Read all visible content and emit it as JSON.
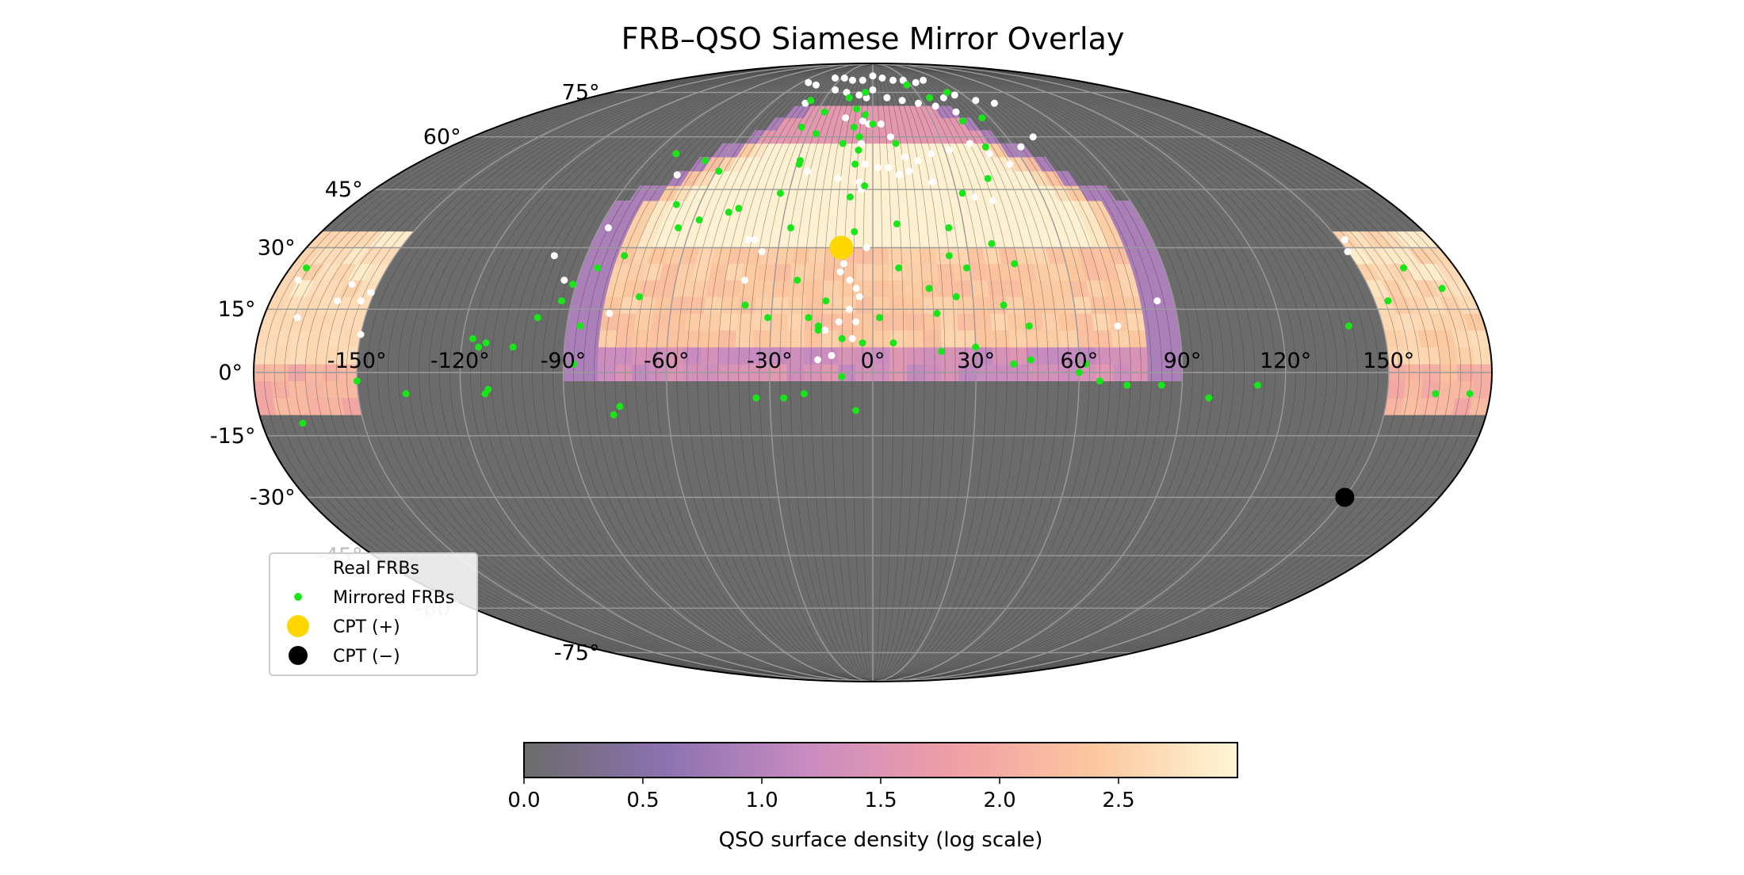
{
  "chart_data": {
    "type": "scatter",
    "projection": "mollweide",
    "title": "FRB–QSO Siamese Mirror Overlay",
    "lon_ticks": [
      -150,
      -120,
      -90,
      -60,
      -30,
      0,
      30,
      60,
      90,
      120,
      150
    ],
    "lon_tick_labels": [
      "-150°",
      "-120°",
      "-90°",
      "-60°",
      "-30°",
      "0°",
      "30°",
      "60°",
      "90°",
      "120°",
      "150°"
    ],
    "lat_ticks": [
      75,
      60,
      45,
      30,
      15,
      0,
      -15,
      -30,
      -45,
      -60,
      -75
    ],
    "lat_tick_labels": [
      "75°",
      "60°",
      "45°",
      "30°",
      "15°",
      "0°",
      "-15°",
      "-30°",
      "-45°",
      "-60°",
      "-75°"
    ],
    "grid": true,
    "background_color": "#6b6b6b",
    "heatmap": {
      "description": "QSO surface density (log scale) on sky grid",
      "colormap": [
        "#6b6b6b",
        "#8c72b0",
        "#c98cc0",
        "#f09ea6",
        "#fcc79e",
        "#fef5d6"
      ],
      "cmap_stops": [
        0.0,
        0.2,
        0.4,
        0.6,
        0.8,
        1.0
      ],
      "vmin": 0.0,
      "vmax": 3.0
    },
    "colorbar": {
      "label": "QSO surface density (log scale)",
      "ticks": [
        0.0,
        0.5,
        1.0,
        1.5,
        2.0,
        2.5
      ],
      "tick_labels": [
        "0.0",
        "0.5",
        "1.0",
        "1.5",
        "2.0",
        "2.5"
      ]
    },
    "legend": {
      "placement": "lower-left",
      "entries": [
        {
          "label": "Real FRBs",
          "color": "#ffffff",
          "marker": "small-dot"
        },
        {
          "label": "Mirrored FRBs",
          "color": "#19e619",
          "marker": "small-dot"
        },
        {
          "label": "CPT (+)",
          "color": "#ffd700",
          "marker": "large-dot"
        },
        {
          "label": "CPT (−)",
          "color": "#000000",
          "marker": "large-dot"
        }
      ]
    },
    "series": [
      {
        "name": "Real FRBs",
        "color": "#ffffff",
        "points": [
          [
            -36,
            81
          ],
          [
            -27,
            81
          ],
          [
            -18,
            80
          ],
          [
            -9,
            80
          ],
          [
            0,
            82
          ],
          [
            9,
            81
          ],
          [
            18,
            80
          ],
          [
            27,
            80
          ],
          [
            36,
            79
          ],
          [
            45,
            80
          ],
          [
            -45,
            78
          ],
          [
            -54,
            79
          ],
          [
            -27,
            76
          ],
          [
            -18,
            75
          ],
          [
            -9,
            74
          ],
          [
            -4,
            73
          ],
          [
            0,
            76
          ],
          [
            9,
            73
          ],
          [
            18,
            72
          ],
          [
            27,
            71
          ],
          [
            45,
            73
          ],
          [
            54,
            74
          ],
          [
            63,
            72
          ],
          [
            72,
            71
          ],
          [
            36,
            70
          ],
          [
            45,
            68
          ],
          [
            -40,
            71
          ],
          [
            -14,
            66
          ],
          [
            -5,
            65
          ],
          [
            -2,
            64
          ],
          [
            4,
            64
          ],
          [
            8,
            60
          ],
          [
            13,
            54
          ],
          [
            18,
            53
          ],
          [
            24,
            55
          ],
          [
            32,
            56
          ],
          [
            42,
            58
          ],
          [
            48,
            55
          ],
          [
            54,
            52
          ],
          [
            63,
            57
          ],
          [
            72,
            60
          ],
          [
            -5,
            58
          ],
          [
            -3,
            52
          ],
          [
            2,
            51
          ],
          [
            6,
            51
          ],
          [
            10,
            49
          ],
          [
            14,
            50
          ],
          [
            -25,
            50
          ],
          [
            -13,
            48
          ],
          [
            -5,
            47
          ],
          [
            -4,
            45
          ],
          [
            22,
            47
          ],
          [
            36,
            43
          ],
          [
            42,
            42
          ],
          [
            -40,
            32
          ],
          [
            -38,
            32
          ],
          [
            -35,
            29
          ],
          [
            -39,
            22
          ],
          [
            -2,
            30
          ],
          [
            -4,
            18
          ],
          [
            -7,
            15
          ],
          [
            -5,
            12
          ],
          [
            -10,
            12
          ],
          [
            -14,
            10
          ],
          [
            -6,
            8
          ],
          [
            -12,
            4
          ],
          [
            -16,
            3
          ],
          [
            -9,
            26
          ],
          [
            -10,
            24
          ],
          [
            -7,
            22
          ],
          [
            -5,
            20
          ],
          [
            -100,
            28
          ],
          [
            -94,
            22
          ],
          [
            -78,
            14
          ],
          [
            -150,
            9
          ],
          [
            -170,
            13
          ],
          [
            -160,
            17
          ],
          [
            -153,
            17
          ],
          [
            -151,
            19
          ],
          [
            -175,
            22
          ],
          [
            -158,
            21
          ],
          [
            150,
            29
          ],
          [
            152,
            32
          ],
          [
            85,
            17
          ],
          [
            72,
            11
          ],
          [
            -87,
            35
          ],
          [
            -74,
            49
          ]
        ]
      },
      {
        "name": "Mirrored FRBs",
        "color": "#19e619",
        "points": [
          [
            -5,
            75
          ],
          [
            -15,
            73
          ],
          [
            -9,
            69
          ],
          [
            -4,
            67
          ],
          [
            0,
            64
          ],
          [
            -9,
            63
          ],
          [
            -6,
            60
          ],
          [
            -6,
            56
          ],
          [
            -26,
            68
          ],
          [
            -13,
            58
          ],
          [
            -7,
            52
          ],
          [
            10,
            58
          ],
          [
            27,
            78
          ],
          [
            36,
            73
          ],
          [
            51,
            75
          ],
          [
            45,
            65
          ],
          [
            56,
            66
          ],
          [
            48,
            57
          ],
          [
            -38,
            72
          ],
          [
            -34,
            63
          ],
          [
            -26,
            61
          ],
          [
            -3,
            46
          ],
          [
            -8,
            43
          ],
          [
            -6,
            34
          ],
          [
            8,
            36
          ],
          [
            25,
            35
          ],
          [
            32,
            44
          ],
          [
            43,
            48
          ],
          [
            38,
            31
          ],
          [
            -29,
            53
          ],
          [
            -67,
            53
          ],
          [
            -59,
            50
          ],
          [
            -81,
            55
          ],
          [
            -29,
            52
          ],
          [
            -33,
            44
          ],
          [
            -27,
            35
          ],
          [
            -46,
            40
          ],
          [
            -64,
            35
          ],
          [
            -68,
            41
          ],
          [
            -78,
            28
          ],
          [
            -85,
            25
          ],
          [
            -91,
            21
          ],
          [
            -93,
            17
          ],
          [
            -86,
            11
          ],
          [
            -99,
            13
          ],
          [
            -115,
            6
          ],
          [
            -105,
            6
          ],
          [
            -113,
            7
          ],
          [
            -150,
            -2
          ],
          [
            -136,
            -5
          ],
          [
            -117,
            8
          ],
          [
            -112,
            -4
          ],
          [
            -87,
            2
          ],
          [
            -76,
            -10
          ],
          [
            -74,
            -8
          ],
          [
            -38,
            16
          ],
          [
            -31,
            13
          ],
          [
            -19,
            13
          ],
          [
            -16,
            11
          ],
          [
            -23,
            22
          ],
          [
            -14,
            17
          ],
          [
            -16,
            10
          ],
          [
            -9,
            8
          ],
          [
            -3,
            7
          ],
          [
            6,
            7
          ],
          [
            2,
            13
          ],
          [
            8,
            25
          ],
          [
            17,
            20
          ],
          [
            19,
            14
          ],
          [
            24,
            28
          ],
          [
            29,
            25
          ],
          [
            39,
            16
          ],
          [
            44,
            26
          ],
          [
            46,
            11
          ],
          [
            46,
            3
          ],
          [
            41,
            2
          ],
          [
            30,
            6
          ],
          [
            20,
            5
          ],
          [
            -34,
            -6
          ],
          [
            -26,
            -6
          ],
          [
            -20,
            -5
          ],
          [
            -9,
            -1
          ],
          [
            -5,
            -9
          ],
          [
            25,
            18
          ],
          [
            62,
            2
          ],
          [
            60,
            0
          ],
          [
            66,
            -2
          ],
          [
            74,
            -3
          ],
          [
            84,
            -3
          ],
          [
            98,
            -6
          ],
          [
            112,
            -3
          ],
          [
            174,
            -5
          ],
          [
            164,
            -5
          ],
          [
            140,
            11
          ],
          [
            154,
            17
          ],
          [
            172,
            20
          ],
          [
            164,
            25
          ],
          [
            -175,
            25
          ],
          [
            -168,
            -12
          ],
          [
            -113,
            -5
          ],
          [
            -70,
            18
          ],
          [
            -58,
            37
          ],
          [
            -49,
            39
          ]
        ]
      },
      {
        "name": "CPT (+)",
        "color": "#ffd700",
        "points": [
          [
            -10,
            30
          ]
        ]
      },
      {
        "name": "CPT (−)",
        "color": "#000000",
        "points": [
          [
            150,
            -30
          ]
        ]
      }
    ]
  }
}
